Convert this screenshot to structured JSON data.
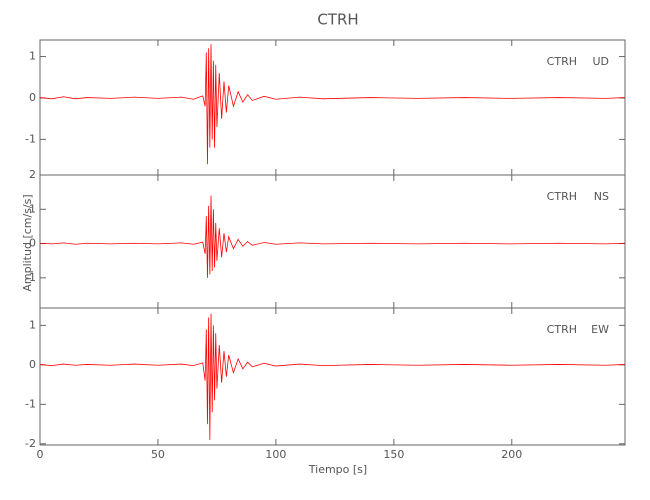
{
  "title": "CTRH",
  "ylabel": "Amplitud [cm/s/s]",
  "xlabel": "Tiempo [s]",
  "chart_data": [
    {
      "type": "line",
      "station": "CTRH",
      "component": "UD",
      "x": [
        0,
        5,
        10,
        15,
        20,
        30,
        40,
        50,
        60,
        65,
        69,
        70,
        70.5,
        71,
        71.5,
        72,
        72.5,
        73,
        73.5,
        74,
        74.5,
        75,
        76,
        77,
        78,
        79,
        80,
        82,
        84,
        86,
        88,
        90,
        95,
        100,
        110,
        120,
        140,
        160,
        180,
        200,
        220,
        240,
        248
      ],
      "series": [
        {
          "color": "#ff0000",
          "values": [
            0.01,
            -0.02,
            0.03,
            -0.02,
            0.01,
            -0.01,
            0.02,
            -0.01,
            0.02,
            -0.03,
            0.05,
            -0.2,
            1.1,
            -1.6,
            1.2,
            -1.2,
            1.3,
            -1.0,
            0.9,
            -1.2,
            0.8,
            -0.7,
            0.6,
            -0.5,
            0.4,
            -0.35,
            0.3,
            -0.2,
            0.15,
            -0.1,
            0.08,
            -0.06,
            0.04,
            -0.03,
            0.02,
            -0.02,
            0.01,
            -0.01,
            0.01,
            -0.01,
            0.01,
            -0.01,
            0.01
          ]
        }
      ],
      "xlim": [
        0,
        248
      ],
      "ylim": [
        -1.86,
        1.4
      ],
      "yticks": [
        -1,
        0,
        1
      ],
      "xticks": [
        0,
        50,
        100,
        150,
        200
      ]
    },
    {
      "type": "line",
      "station": "CTRH",
      "component": "NS",
      "x": [
        0,
        5,
        10,
        15,
        20,
        30,
        40,
        50,
        60,
        65,
        69,
        70,
        70.5,
        71,
        71.5,
        72,
        72.5,
        73,
        73.5,
        74,
        74.5,
        75,
        76,
        77,
        78,
        79,
        80,
        82,
        84,
        86,
        88,
        90,
        95,
        100,
        110,
        120,
        140,
        160,
        180,
        200,
        220,
        240,
        248
      ],
      "series": [
        {
          "color": "#ff0000",
          "values": [
            0.01,
            -0.01,
            0.02,
            -0.02,
            0.01,
            -0.01,
            0.01,
            -0.01,
            0.02,
            -0.02,
            0.04,
            -0.3,
            0.8,
            -1.0,
            1.1,
            -0.9,
            1.4,
            -0.8,
            1.0,
            -0.7,
            0.6,
            -0.5,
            0.45,
            -0.4,
            0.3,
            -0.25,
            0.2,
            -0.15,
            0.12,
            -0.08,
            0.06,
            -0.05,
            0.03,
            -0.02,
            0.02,
            -0.01,
            0.01,
            -0.01,
            0.01,
            -0.01,
            0.01,
            -0.01,
            0.01
          ]
        }
      ],
      "xlim": [
        0,
        248
      ],
      "ylim": [
        -1.88,
        2
      ],
      "yticks": [
        -1,
        0,
        1,
        2
      ],
      "xticks": [
        0,
        50,
        100,
        150,
        200
      ]
    },
    {
      "type": "line",
      "station": "CTRH",
      "component": "EW",
      "x": [
        0,
        5,
        10,
        15,
        20,
        30,
        40,
        50,
        60,
        65,
        69,
        70,
        70.5,
        71,
        71.5,
        72,
        72.5,
        73,
        73.5,
        74,
        74.5,
        75,
        76,
        77,
        78,
        79,
        80,
        82,
        84,
        86,
        88,
        90,
        95,
        100,
        110,
        120,
        140,
        160,
        180,
        200,
        220,
        240,
        248
      ],
      "series": [
        {
          "color": "#ff0000",
          "values": [
            0.01,
            -0.02,
            0.02,
            -0.01,
            0.01,
            -0.01,
            0.02,
            -0.01,
            0.02,
            -0.02,
            0.05,
            -0.4,
            0.9,
            -1.5,
            1.2,
            -1.9,
            1.3,
            -1.2,
            1.0,
            -0.9,
            0.8,
            -0.6,
            0.5,
            -0.45,
            0.35,
            -0.3,
            0.25,
            -0.2,
            0.15,
            -0.1,
            0.07,
            -0.05,
            0.04,
            -0.03,
            0.02,
            -0.02,
            0.01,
            -0.01,
            0.01,
            -0.01,
            0.01,
            -0.01,
            0.01
          ]
        }
      ],
      "xlim": [
        0,
        248
      ],
      "ylim": [
        -2.03,
        1.44
      ],
      "yticks": [
        -2,
        -1,
        0,
        1
      ],
      "xticks": [
        0,
        50,
        100,
        150,
        200
      ]
    }
  ]
}
